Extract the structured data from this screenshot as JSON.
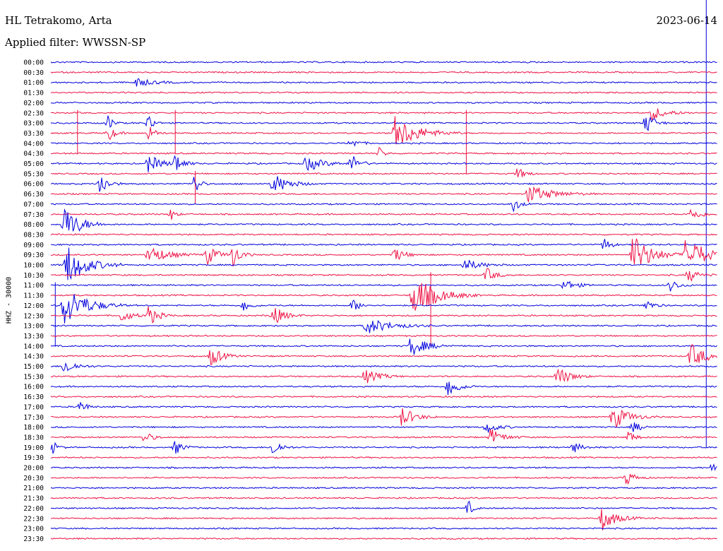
{
  "header": {
    "station": "HL Tetrakomo, Arta",
    "date": "2023-06-14",
    "filter": "Applied filter: WWSSN-SP"
  },
  "chart_data": {
    "type": "line",
    "title": "HL Tetrakomo, Arta",
    "ylabel": "HHZ - 30000",
    "xlabel": "",
    "row_colors": [
      "#0000dd",
      "#ee1144"
    ],
    "rows": [
      "00:00",
      "00:30",
      "01:00",
      "01:30",
      "02:00",
      "02:30",
      "03:00",
      "03:30",
      "04:00",
      "04:30",
      "05:00",
      "05:30",
      "06:00",
      "06:30",
      "07:00",
      "07:30",
      "08:00",
      "08:30",
      "09:00",
      "09:30",
      "10:00",
      "10:30",
      "11:00",
      "11:30",
      "12:00",
      "12:30",
      "13:00",
      "13:30",
      "14:00",
      "14:30",
      "15:00",
      "15:30",
      "16:00",
      "16:30",
      "17:00",
      "17:30",
      "18:00",
      "18:30",
      "19:00",
      "19:30",
      "20:00",
      "20:30",
      "21:00",
      "21:30",
      "22:00",
      "22:30",
      "23:00",
      "23:30"
    ],
    "x_range_minutes": [
      0,
      30
    ],
    "events": [
      {
        "row": "01:00",
        "minute": 3.8,
        "amp": 0.25,
        "dur": 1.0
      },
      {
        "row": "02:30",
        "minute": 27.0,
        "amp": 0.35,
        "dur": 1.0
      },
      {
        "row": "03:00",
        "minute": 2.6,
        "amp": 0.4,
        "dur": 0.3
      },
      {
        "row": "03:00",
        "minute": 4.4,
        "amp": 0.5,
        "dur": 0.3
      },
      {
        "row": "03:00",
        "minute": 26.8,
        "amp": 0.6,
        "dur": 0.5
      },
      {
        "row": "03:30",
        "minute": 2.6,
        "amp": 0.4,
        "dur": 0.4
      },
      {
        "row": "03:30",
        "minute": 4.4,
        "amp": 0.4,
        "dur": 0.4
      },
      {
        "row": "03:30",
        "minute": 15.5,
        "amp": 0.8,
        "dur": 1.5
      },
      {
        "row": "04:00",
        "minute": 13.5,
        "amp": 0.25,
        "dur": 0.5
      },
      {
        "row": "04:30",
        "minute": 14.8,
        "amp": 0.3,
        "dur": 0.3
      },
      {
        "row": "05:00",
        "minute": 4.4,
        "amp": 0.45,
        "dur": 0.8
      },
      {
        "row": "05:00",
        "minute": 5.6,
        "amp": 0.5,
        "dur": 0.5
      },
      {
        "row": "05:00",
        "minute": 11.5,
        "amp": 0.4,
        "dur": 1.0
      },
      {
        "row": "05:00",
        "minute": 13.5,
        "amp": 0.5,
        "dur": 0.5
      },
      {
        "row": "05:30",
        "minute": 21.0,
        "amp": 0.3,
        "dur": 0.5
      },
      {
        "row": "06:00",
        "minute": 2.2,
        "amp": 0.6,
        "dur": 0.5
      },
      {
        "row": "06:00",
        "minute": 6.5,
        "amp": 0.6,
        "dur": 0.3
      },
      {
        "row": "06:00",
        "minute": 10.0,
        "amp": 0.5,
        "dur": 1.0
      },
      {
        "row": "06:30",
        "minute": 21.5,
        "amp": 0.45,
        "dur": 1.5
      },
      {
        "row": "07:00",
        "minute": 20.8,
        "amp": 0.4,
        "dur": 0.4
      },
      {
        "row": "07:30",
        "minute": 5.4,
        "amp": 0.3,
        "dur": 0.3
      },
      {
        "row": "07:30",
        "minute": 28.8,
        "amp": 0.3,
        "dur": 0.7
      },
      {
        "row": "08:00",
        "minute": 0.6,
        "amp": 0.9,
        "dur": 1.0
      },
      {
        "row": "09:00",
        "minute": 24.9,
        "amp": 0.35,
        "dur": 0.4
      },
      {
        "row": "09:30",
        "minute": 4.4,
        "amp": 0.45,
        "dur": 1.2
      },
      {
        "row": "09:30",
        "minute": 7.0,
        "amp": 0.5,
        "dur": 0.7
      },
      {
        "row": "09:30",
        "minute": 8.2,
        "amp": 0.55,
        "dur": 0.5
      },
      {
        "row": "09:30",
        "minute": 15.5,
        "amp": 0.35,
        "dur": 0.6
      },
      {
        "row": "09:30",
        "minute": 26.2,
        "amp": 1.0,
        "dur": 1.2
      },
      {
        "row": "09:30",
        "minute": 28.6,
        "amp": 0.95,
        "dur": 1.2
      },
      {
        "row": "10:00",
        "minute": 0.7,
        "amp": 1.0,
        "dur": 1.3
      },
      {
        "row": "10:00",
        "minute": 18.6,
        "amp": 0.3,
        "dur": 1.0
      },
      {
        "row": "10:30",
        "minute": 19.6,
        "amp": 0.35,
        "dur": 0.6
      },
      {
        "row": "10:30",
        "minute": 28.7,
        "amp": 0.35,
        "dur": 0.6
      },
      {
        "row": "11:00",
        "minute": 23.1,
        "amp": 0.3,
        "dur": 0.7
      },
      {
        "row": "11:00",
        "minute": 27.9,
        "amp": 0.3,
        "dur": 0.5
      },
      {
        "row": "11:30",
        "minute": 16.3,
        "amp": 1.0,
        "dur": 1.5
      },
      {
        "row": "12:00",
        "minute": 0.6,
        "amp": 1.0,
        "dur": 1.4
      },
      {
        "row": "12:00",
        "minute": 8.7,
        "amp": 0.35,
        "dur": 0.4
      },
      {
        "row": "12:00",
        "minute": 13.6,
        "amp": 0.3,
        "dur": 0.5
      },
      {
        "row": "12:00",
        "minute": 26.7,
        "amp": 0.35,
        "dur": 0.5
      },
      {
        "row": "12:30",
        "minute": 3.2,
        "amp": 0.3,
        "dur": 0.7
      },
      {
        "row": "12:30",
        "minute": 4.4,
        "amp": 0.5,
        "dur": 0.6
      },
      {
        "row": "12:30",
        "minute": 10.0,
        "amp": 0.5,
        "dur": 0.7
      },
      {
        "row": "13:00",
        "minute": 14.2,
        "amp": 0.4,
        "dur": 1.5
      },
      {
        "row": "14:00",
        "minute": 16.2,
        "amp": 0.5,
        "dur": 1.0
      },
      {
        "row": "14:30",
        "minute": 7.2,
        "amp": 0.5,
        "dur": 0.7
      },
      {
        "row": "14:30",
        "minute": 28.8,
        "amp": 0.6,
        "dur": 1.0
      },
      {
        "row": "15:00",
        "minute": 0.6,
        "amp": 0.4,
        "dur": 0.7
      },
      {
        "row": "15:30",
        "minute": 14.1,
        "amp": 0.35,
        "dur": 1.0
      },
      {
        "row": "15:30",
        "minute": 22.8,
        "amp": 0.5,
        "dur": 0.8
      },
      {
        "row": "16:00",
        "minute": 17.9,
        "amp": 0.6,
        "dur": 0.6
      },
      {
        "row": "17:00",
        "minute": 1.3,
        "amp": 0.35,
        "dur": 0.4
      },
      {
        "row": "17:30",
        "minute": 15.8,
        "amp": 0.5,
        "dur": 0.8
      },
      {
        "row": "17:30",
        "minute": 25.3,
        "amp": 0.6,
        "dur": 1.0
      },
      {
        "row": "18:00",
        "minute": 19.6,
        "amp": 0.3,
        "dur": 0.7
      },
      {
        "row": "18:00",
        "minute": 26.2,
        "amp": 0.25,
        "dur": 0.6
      },
      {
        "row": "18:30",
        "minute": 4.2,
        "amp": 0.3,
        "dur": 0.5
      },
      {
        "row": "18:30",
        "minute": 19.8,
        "amp": 0.4,
        "dur": 0.8
      },
      {
        "row": "18:30",
        "minute": 26.0,
        "amp": 0.35,
        "dur": 0.4
      },
      {
        "row": "19:00",
        "minute": 0.1,
        "amp": 0.3,
        "dur": 0.3
      },
      {
        "row": "19:00",
        "minute": 5.6,
        "amp": 0.35,
        "dur": 0.5
      },
      {
        "row": "19:00",
        "minute": 10.0,
        "amp": 0.45,
        "dur": 0.5
      },
      {
        "row": "19:00",
        "minute": 23.5,
        "amp": 0.25,
        "dur": 0.6
      },
      {
        "row": "20:00",
        "minute": 29.8,
        "amp": 0.3,
        "dur": 0.3
      },
      {
        "row": "20:30",
        "minute": 25.9,
        "amp": 0.4,
        "dur": 0.5
      },
      {
        "row": "22:00",
        "minute": 18.8,
        "amp": 0.35,
        "dur": 0.3
      },
      {
        "row": "22:30",
        "minute": 24.8,
        "amp": 0.6,
        "dur": 0.9
      }
    ],
    "long_spikes": [
      {
        "from_row": "02:30",
        "to_row": "05:30",
        "minute": 18.7
      },
      {
        "from_row": "02:30",
        "to_row": "04:30",
        "minute": 5.6
      },
      {
        "from_row": "02:30",
        "to_row": "04:30",
        "minute": 1.2
      },
      {
        "from_row": "05:30",
        "to_row": "07:00",
        "minute": 6.5
      },
      {
        "from_row": "10:30",
        "to_row": "14:00",
        "minute": 17.1
      },
      {
        "from_row": "11:00",
        "to_row": "14:00",
        "minute": 0.2
      },
      {
        "from_row": "00:00",
        "to_row": "19:00",
        "minute": 29.5
      }
    ]
  }
}
